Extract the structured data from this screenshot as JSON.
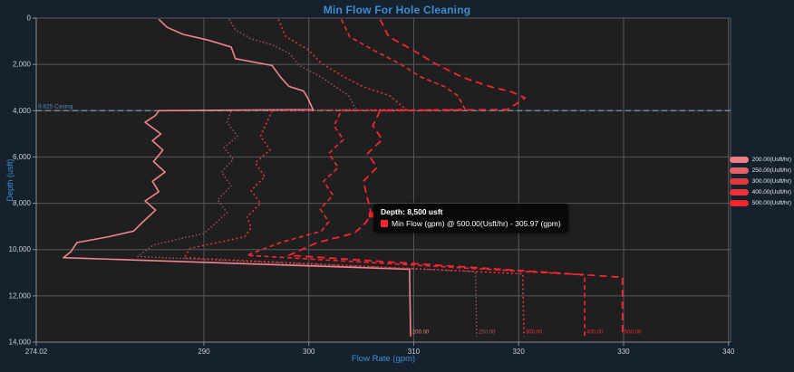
{
  "window": {
    "bg": "#16212e",
    "plot_bg": "#1f1f1f",
    "grid_color": "#54595f",
    "axis_color": "#868d95",
    "tick_text_color": "#c9ced4",
    "accent_blue": "#3e8ed0"
  },
  "title": {
    "text": "Min Flow For Hole Cleaning"
  },
  "axes": {
    "x": {
      "label": "Flow Rate (gpm)",
      "min": 274.02,
      "max": 340.2,
      "ticks": [
        {
          "v": 274.02,
          "t": "274.02"
        },
        {
          "v": 290,
          "t": "290"
        },
        {
          "v": 300,
          "t": "300"
        },
        {
          "v": 310,
          "t": "310"
        },
        {
          "v": 320,
          "t": "320"
        },
        {
          "v": 330,
          "t": "330"
        },
        {
          "v": 340,
          "t": "340"
        }
      ]
    },
    "y": {
      "label": "Depth (usft)",
      "min": 0,
      "max": 14000,
      "inverted": true,
      "ticks": [
        {
          "v": 0,
          "t": "0"
        },
        {
          "v": 2000,
          "t": "2,000"
        },
        {
          "v": 4000,
          "t": "4,000"
        },
        {
          "v": 6000,
          "t": "6,000"
        },
        {
          "v": 8000,
          "t": "8,000"
        },
        {
          "v": 10000,
          "t": "10,000"
        },
        {
          "v": 12000,
          "t": "12,000"
        },
        {
          "v": 14000,
          "t": "14,000"
        }
      ]
    }
  },
  "casing": {
    "label": "9.625 Casing",
    "depth": 4000,
    "line_color": "#7e95ab",
    "label_color": "#4e8ecb"
  },
  "tooltip": {
    "title": "Depth: 8,500 usft",
    "series_text": "Min Flow (gpm) @ 500.00(Usft/hr) - 305.97 (gpm)",
    "swatch_color": "#f3262e",
    "point": [
      305.97,
      8500
    ]
  },
  "legend": {
    "items": [
      {
        "id": "200",
        "label": "200.00(Usft/hr)",
        "swatch_color": "#ef7f87"
      },
      {
        "id": "250",
        "label": "250.00(Usft/hr)",
        "swatch_color": "#e4626a"
      },
      {
        "id": "300",
        "label": "300.00(Usft/hr)",
        "swatch_color": "#e43840"
      },
      {
        "id": "400",
        "label": "400.00(Usft/hr)",
        "swatch_color": "#ee3038"
      },
      {
        "id": "500",
        "label": "500.00(Usft/hr)",
        "swatch_color": "#f9242c"
      }
    ]
  },
  "chart_data": {
    "type": "line",
    "title": "Min Flow For Hole Cleaning",
    "xlabel": "Flow Rate (gpm)",
    "ylabel": "Depth (usft)",
    "x_range": [
      274.02,
      340.2
    ],
    "y_range": [
      0,
      14000
    ],
    "y_inverted": true,
    "grid": true,
    "legend_position": "right-outside",
    "annotation": {
      "text": "9.625 Casing",
      "depth": 4000
    },
    "series": [
      {
        "name": "200.00(Usft/hr)",
        "style": "solid",
        "width": 1.6,
        "color": "#f0858d",
        "end_label": "200.00",
        "end_flow": 309.7,
        "end_depth": 13750,
        "points": [
          [
            285.7,
            50
          ],
          [
            286.5,
            400
          ],
          [
            288.0,
            700
          ],
          [
            290.4,
            950
          ],
          [
            292.6,
            1250
          ],
          [
            293.0,
            1750
          ],
          [
            296.5,
            2050
          ],
          [
            297.3,
            2550
          ],
          [
            298.1,
            2950
          ],
          [
            299.5,
            3150
          ],
          [
            299.9,
            3450
          ],
          [
            300.4,
            3950
          ],
          [
            285.7,
            4000
          ],
          [
            285.4,
            4200
          ],
          [
            284.4,
            4500
          ],
          [
            285.9,
            5000
          ],
          [
            285.1,
            5300
          ],
          [
            286.1,
            5700
          ],
          [
            285.2,
            6200
          ],
          [
            286.3,
            6650
          ],
          [
            285.1,
            7050
          ],
          [
            285.7,
            7500
          ],
          [
            284.4,
            7900
          ],
          [
            285.4,
            8300
          ],
          [
            284.2,
            8800
          ],
          [
            283.3,
            9200
          ],
          [
            280.9,
            9450
          ],
          [
            277.9,
            9700
          ],
          [
            277.3,
            10100
          ],
          [
            276.6,
            10350
          ],
          [
            309.6,
            10850
          ],
          [
            309.7,
            13750
          ]
        ]
      },
      {
        "name": "250.00(Usft/hr)",
        "style": "dot-fine",
        "width": 1.4,
        "color": "#a85560",
        "end_label": "250.00",
        "end_flow": 316.0,
        "end_depth": 13750,
        "points": [
          [
            292.4,
            50
          ],
          [
            293.0,
            500
          ],
          [
            294.5,
            900
          ],
          [
            296.5,
            1150
          ],
          [
            298.2,
            1550
          ],
          [
            299.1,
            2050
          ],
          [
            301.2,
            2550
          ],
          [
            302.5,
            2950
          ],
          [
            303.8,
            3350
          ],
          [
            304.5,
            3950
          ],
          [
            292.6,
            4000
          ],
          [
            292.2,
            4500
          ],
          [
            293.2,
            5100
          ],
          [
            291.9,
            5600
          ],
          [
            292.8,
            6100
          ],
          [
            291.7,
            6650
          ],
          [
            292.6,
            7250
          ],
          [
            291.3,
            7850
          ],
          [
            292.2,
            8400
          ],
          [
            290.9,
            8950
          ],
          [
            290.0,
            9300
          ],
          [
            285.2,
            9800
          ],
          [
            283.7,
            10300
          ],
          [
            315.9,
            10950
          ],
          [
            316.0,
            13750
          ]
        ]
      },
      {
        "name": "300.00(Usft/hr)",
        "style": "dot",
        "width": 1.6,
        "color": "#e4333d",
        "end_label": "300.00",
        "end_flow": 320.5,
        "end_depth": 13750,
        "points": [
          [
            297.1,
            50
          ],
          [
            297.8,
            800
          ],
          [
            299.9,
            1350
          ],
          [
            301.2,
            1950
          ],
          [
            303.4,
            2550
          ],
          [
            305.1,
            2950
          ],
          [
            307.7,
            3350
          ],
          [
            309.3,
            3950
          ],
          [
            296.5,
            4000
          ],
          [
            296.0,
            4500
          ],
          [
            295.4,
            5100
          ],
          [
            296.3,
            5700
          ],
          [
            294.9,
            6250
          ],
          [
            295.8,
            6850
          ],
          [
            294.5,
            7450
          ],
          [
            295.4,
            8000
          ],
          [
            294.1,
            8600
          ],
          [
            294.5,
            9050
          ],
          [
            293.9,
            9450
          ],
          [
            288.7,
            9950
          ],
          [
            288.1,
            10350
          ],
          [
            320.4,
            11050
          ],
          [
            320.5,
            13750
          ]
        ]
      },
      {
        "name": "400.00(Usft/hr)",
        "style": "dash",
        "width": 1.7,
        "color": "#e62933",
        "end_label": "400.00",
        "end_flow": 326.3,
        "end_depth": 13750,
        "points": [
          [
            303.1,
            50
          ],
          [
            303.9,
            800
          ],
          [
            306.0,
            1350
          ],
          [
            308.6,
            1950
          ],
          [
            310.7,
            2550
          ],
          [
            312.9,
            2950
          ],
          [
            314.2,
            3350
          ],
          [
            314.9,
            3950
          ],
          [
            303.1,
            4000
          ],
          [
            302.4,
            4650
          ],
          [
            303.3,
            5250
          ],
          [
            301.9,
            5850
          ],
          [
            302.8,
            6450
          ],
          [
            301.4,
            7050
          ],
          [
            302.3,
            7650
          ],
          [
            301.1,
            8250
          ],
          [
            301.9,
            8800
          ],
          [
            301.2,
            9200
          ],
          [
            297.3,
            9700
          ],
          [
            294.1,
            10250
          ],
          [
            326.3,
            11100
          ],
          [
            326.3,
            13750
          ]
        ]
      },
      {
        "name": "500.00(Usft/hr)",
        "style": "dash-long",
        "width": 1.8,
        "color": "#fb232f",
        "end_label": "500.00",
        "end_flow": 329.9,
        "end_depth": 13750,
        "points": [
          [
            306.8,
            50
          ],
          [
            307.6,
            800
          ],
          [
            309.8,
            1350
          ],
          [
            312.0,
            1950
          ],
          [
            314.6,
            2550
          ],
          [
            317.2,
            2950
          ],
          [
            319.4,
            3200
          ],
          [
            320.6,
            3450
          ],
          [
            319.8,
            3700
          ],
          [
            318.9,
            3950
          ],
          [
            306.8,
            4000
          ],
          [
            306.1,
            4650
          ],
          [
            307.0,
            5250
          ],
          [
            305.6,
            5850
          ],
          [
            306.5,
            6450
          ],
          [
            305.2,
            7050
          ],
          [
            305.97,
            8500
          ],
          [
            305.3,
            8900
          ],
          [
            304.3,
            9300
          ],
          [
            300.8,
            9700
          ],
          [
            298.1,
            10250
          ],
          [
            329.9,
            11200
          ],
          [
            329.9,
            13750
          ]
        ]
      }
    ]
  }
}
